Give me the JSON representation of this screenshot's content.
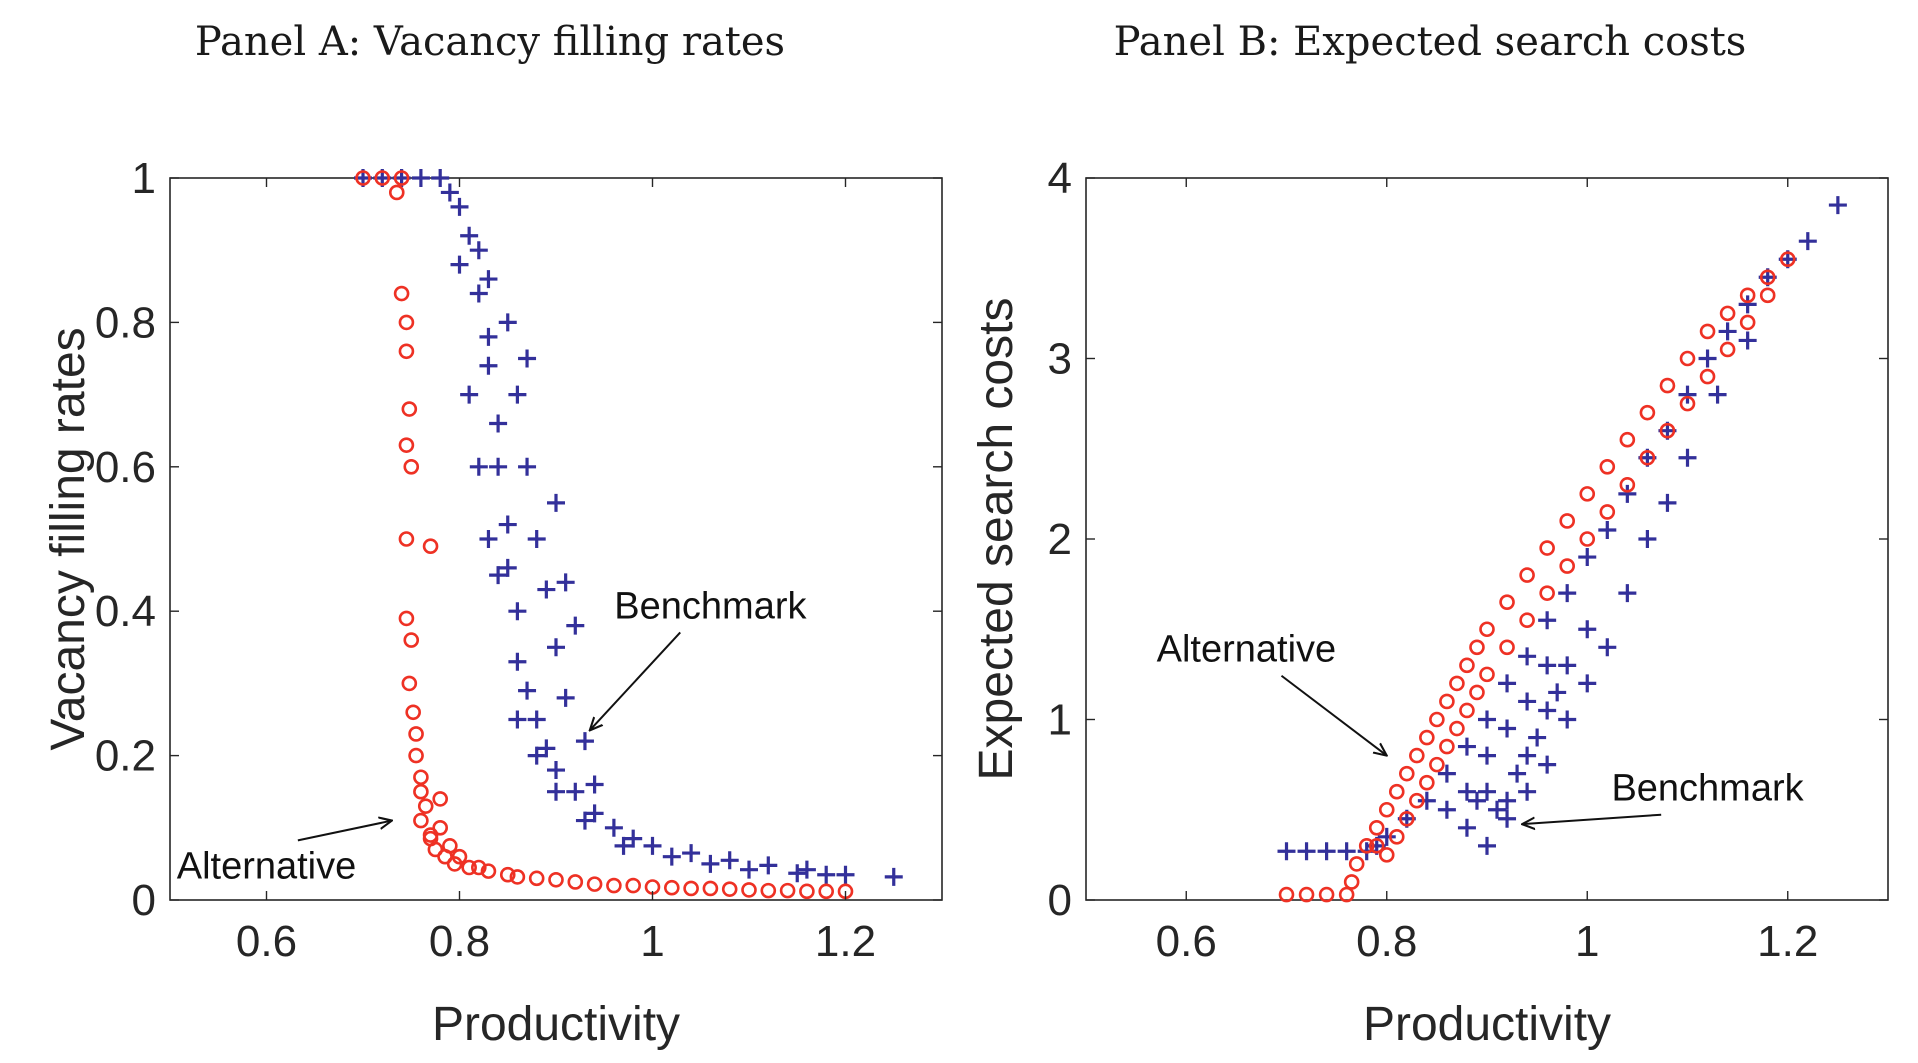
{
  "chart_data": [
    {
      "id": "panel-a",
      "type": "scatter",
      "title": "Panel A: Vacancy filling rates",
      "xlabel": "Productivity",
      "ylabel": "Vacancy filling rates",
      "xlim": [
        0.5,
        1.3
      ],
      "ylim": [
        0,
        1
      ],
      "xticks": [
        0.6,
        0.8,
        1,
        1.2
      ],
      "xtick_labels": [
        "0.6",
        "0.8",
        "1",
        "1.2"
      ],
      "yticks": [
        0,
        0.2,
        0.4,
        0.6,
        0.8,
        1
      ],
      "ytick_labels": [
        "0",
        "0.2",
        "0.4",
        "0.6",
        "0.8",
        "1"
      ],
      "grid": false,
      "series": [
        {
          "marker": "plus",
          "color": "#33309a",
          "points": [
            [
              0.7,
              1.0
            ],
            [
              0.72,
              1.0
            ],
            [
              0.74,
              1.0
            ],
            [
              0.76,
              1.0
            ],
            [
              0.78,
              1.0
            ],
            [
              0.79,
              0.98
            ],
            [
              0.8,
              0.96
            ],
            [
              0.81,
              0.92
            ],
            [
              0.82,
              0.9
            ],
            [
              0.82,
              0.84
            ],
            [
              0.83,
              0.78
            ],
            [
              0.83,
              0.74
            ],
            [
              0.84,
              0.66
            ],
            [
              0.84,
              0.6
            ],
            [
              0.85,
              0.52
            ],
            [
              0.85,
              0.46
            ],
            [
              0.86,
              0.4
            ],
            [
              0.86,
              0.33
            ],
            [
              0.87,
              0.29
            ],
            [
              0.88,
              0.25
            ],
            [
              0.89,
              0.21
            ],
            [
              0.9,
              0.18
            ],
            [
              0.92,
              0.15
            ],
            [
              0.94,
              0.12
            ],
            [
              0.96,
              0.1
            ],
            [
              0.98,
              0.085
            ],
            [
              1.0,
              0.075
            ],
            [
              1.04,
              0.065
            ],
            [
              1.08,
              0.055
            ],
            [
              1.12,
              0.048
            ],
            [
              1.16,
              0.042
            ],
            [
              1.2,
              0.035
            ],
            [
              1.25,
              0.032
            ],
            [
              0.82,
              0.6
            ],
            [
              0.83,
              0.5
            ],
            [
              0.84,
              0.45
            ],
            [
              0.81,
              0.7
            ],
            [
              0.8,
              0.88
            ],
            [
              0.83,
              0.86
            ],
            [
              0.85,
              0.8
            ],
            [
              0.87,
              0.6
            ],
            [
              0.88,
              0.5
            ],
            [
              0.89,
              0.43
            ],
            [
              0.9,
              0.35
            ],
            [
              0.91,
              0.28
            ],
            [
              0.93,
              0.22
            ],
            [
              0.86,
              0.7
            ],
            [
              0.87,
              0.75
            ],
            [
              0.9,
              0.55
            ],
            [
              0.91,
              0.44
            ],
            [
              0.92,
              0.38
            ],
            [
              0.94,
              0.16
            ],
            [
              0.86,
              0.25
            ],
            [
              0.88,
              0.2
            ],
            [
              0.9,
              0.15
            ],
            [
              0.93,
              0.11
            ],
            [
              0.97,
              0.075
            ],
            [
              1.02,
              0.06
            ],
            [
              1.06,
              0.05
            ],
            [
              1.1,
              0.042
            ],
            [
              1.15,
              0.037
            ],
            [
              1.18,
              0.035
            ]
          ]
        },
        {
          "marker": "circle",
          "color": "#ee3124",
          "points": [
            [
              0.7,
              1.0
            ],
            [
              0.72,
              1.0
            ],
            [
              0.74,
              1.0
            ],
            [
              0.735,
              0.98
            ],
            [
              0.74,
              0.84
            ],
            [
              0.745,
              0.8
            ],
            [
              0.745,
              0.76
            ],
            [
              0.748,
              0.68
            ],
            [
              0.745,
              0.63
            ],
            [
              0.75,
              0.6
            ],
            [
              0.745,
              0.5
            ],
            [
              0.77,
              0.49
            ],
            [
              0.745,
              0.39
            ],
            [
              0.75,
              0.36
            ],
            [
              0.748,
              0.3
            ],
            [
              0.752,
              0.26
            ],
            [
              0.755,
              0.23
            ],
            [
              0.755,
              0.2
            ],
            [
              0.76,
              0.17
            ],
            [
              0.76,
              0.15
            ],
            [
              0.765,
              0.13
            ],
            [
              0.78,
              0.14
            ],
            [
              0.78,
              0.1
            ],
            [
              0.79,
              0.075
            ],
            [
              0.77,
              0.085
            ],
            [
              0.8,
              0.06
            ],
            [
              0.82,
              0.045
            ],
            [
              0.85,
              0.035
            ],
            [
              0.88,
              0.03
            ],
            [
              0.92,
              0.025
            ],
            [
              0.96,
              0.02
            ],
            [
              1.0,
              0.018
            ],
            [
              1.04,
              0.016
            ],
            [
              1.08,
              0.015
            ],
            [
              1.12,
              0.013
            ],
            [
              1.16,
              0.012
            ],
            [
              1.2,
              0.012
            ],
            [
              0.76,
              0.11
            ],
            [
              0.77,
              0.09
            ],
            [
              0.775,
              0.07
            ],
            [
              0.785,
              0.06
            ],
            [
              0.795,
              0.05
            ],
            [
              0.81,
              0.045
            ],
            [
              0.83,
              0.04
            ],
            [
              0.86,
              0.032
            ],
            [
              0.9,
              0.028
            ],
            [
              0.94,
              0.022
            ],
            [
              0.98,
              0.02
            ],
            [
              1.02,
              0.017
            ],
            [
              1.06,
              0.016
            ],
            [
              1.1,
              0.014
            ],
            [
              1.14,
              0.013
            ],
            [
              1.18,
              0.012
            ]
          ]
        }
      ],
      "annotations": [
        {
          "text": "Benchmark",
          "anchor": [
            0.935,
            0.235
          ],
          "label_at": [
            1.06,
            0.39
          ]
        },
        {
          "text": "Alternative",
          "anchor": [
            0.73,
            0.11
          ],
          "label_at": [
            0.6,
            0.03
          ]
        }
      ]
    },
    {
      "id": "panel-b",
      "type": "scatter",
      "title": "Panel B: Expected search costs",
      "xlabel": "Productivity",
      "ylabel": "Expected search costs",
      "xlim": [
        0.5,
        1.3
      ],
      "ylim": [
        0,
        4
      ],
      "xticks": [
        0.6,
        0.8,
        1,
        1.2
      ],
      "xtick_labels": [
        "0.6",
        "0.8",
        "1",
        "1.2"
      ],
      "yticks": [
        0,
        1,
        2,
        3,
        4
      ],
      "ytick_labels": [
        "0",
        "1",
        "2",
        "3",
        "4"
      ],
      "grid": false,
      "series": [
        {
          "marker": "plus",
          "color": "#33309a",
          "points": [
            [
              0.7,
              0.27
            ],
            [
              0.72,
              0.27
            ],
            [
              0.74,
              0.27
            ],
            [
              0.76,
              0.27
            ],
            [
              0.78,
              0.27
            ],
            [
              0.79,
              0.3
            ],
            [
              0.8,
              0.35
            ],
            [
              0.82,
              0.45
            ],
            [
              0.84,
              0.55
            ],
            [
              0.86,
              0.7
            ],
            [
              0.88,
              0.85
            ],
            [
              0.9,
              1.0
            ],
            [
              0.92,
              1.2
            ],
            [
              0.94,
              1.35
            ],
            [
              0.96,
              1.55
            ],
            [
              0.98,
              1.7
            ],
            [
              1.0,
              1.9
            ],
            [
              1.02,
              2.05
            ],
            [
              1.04,
              2.25
            ],
            [
              1.06,
              2.45
            ],
            [
              1.08,
              2.6
            ],
            [
              1.1,
              2.8
            ],
            [
              1.12,
              3.0
            ],
            [
              1.14,
              3.15
            ],
            [
              1.16,
              3.3
            ],
            [
              1.18,
              3.45
            ],
            [
              1.2,
              3.55
            ],
            [
              1.22,
              3.65
            ],
            [
              1.25,
              3.85
            ],
            [
              0.88,
              0.4
            ],
            [
              0.89,
              0.55
            ],
            [
              0.9,
              0.6
            ],
            [
              0.91,
              0.5
            ],
            [
              0.92,
              0.55
            ],
            [
              0.93,
              0.7
            ],
            [
              0.94,
              0.8
            ],
            [
              0.95,
              0.9
            ],
            [
              0.96,
              1.05
            ],
            [
              0.97,
              1.15
            ],
            [
              0.98,
              1.3
            ],
            [
              1.0,
              1.5
            ],
            [
              0.9,
              0.3
            ],
            [
              0.92,
              0.45
            ],
            [
              0.94,
              0.6
            ],
            [
              0.96,
              0.75
            ],
            [
              0.98,
              1.0
            ],
            [
              1.0,
              1.2
            ],
            [
              1.02,
              1.4
            ],
            [
              0.86,
              0.5
            ],
            [
              0.88,
              0.6
            ],
            [
              0.9,
              0.8
            ],
            [
              0.92,
              0.95
            ],
            [
              0.94,
              1.1
            ],
            [
              0.96,
              1.3
            ],
            [
              1.04,
              1.7
            ],
            [
              1.06,
              2.0
            ],
            [
              1.08,
              2.2
            ],
            [
              1.1,
              2.45
            ],
            [
              1.13,
              2.8
            ],
            [
              1.16,
              3.1
            ]
          ]
        },
        {
          "marker": "circle",
          "color": "#ee3124",
          "points": [
            [
              0.7,
              0.03
            ],
            [
              0.72,
              0.03
            ],
            [
              0.74,
              0.03
            ],
            [
              0.76,
              0.03
            ],
            [
              0.765,
              0.1
            ],
            [
              0.77,
              0.2
            ],
            [
              0.78,
              0.3
            ],
            [
              0.79,
              0.4
            ],
            [
              0.8,
              0.5
            ],
            [
              0.81,
              0.6
            ],
            [
              0.82,
              0.7
            ],
            [
              0.83,
              0.8
            ],
            [
              0.84,
              0.9
            ],
            [
              0.85,
              1.0
            ],
            [
              0.86,
              1.1
            ],
            [
              0.87,
              1.2
            ],
            [
              0.88,
              1.3
            ],
            [
              0.89,
              1.4
            ],
            [
              0.9,
              1.5
            ],
            [
              0.92,
              1.65
            ],
            [
              0.94,
              1.8
            ],
            [
              0.96,
              1.95
            ],
            [
              0.98,
              2.1
            ],
            [
              1.0,
              2.25
            ],
            [
              1.02,
              2.4
            ],
            [
              1.04,
              2.55
            ],
            [
              1.06,
              2.7
            ],
            [
              1.08,
              2.85
            ],
            [
              1.1,
              3.0
            ],
            [
              1.12,
              3.15
            ],
            [
              1.14,
              3.25
            ],
            [
              1.16,
              3.35
            ],
            [
              1.18,
              3.45
            ],
            [
              1.2,
              3.55
            ],
            [
              0.79,
              0.3
            ],
            [
              0.8,
              0.25
            ],
            [
              0.81,
              0.35
            ],
            [
              0.82,
              0.45
            ],
            [
              0.83,
              0.55
            ],
            [
              0.84,
              0.65
            ],
            [
              0.85,
              0.75
            ],
            [
              0.86,
              0.85
            ],
            [
              0.87,
              0.95
            ],
            [
              0.88,
              1.05
            ],
            [
              0.89,
              1.15
            ],
            [
              0.9,
              1.25
            ],
            [
              0.92,
              1.4
            ],
            [
              0.94,
              1.55
            ],
            [
              0.96,
              1.7
            ],
            [
              0.98,
              1.85
            ],
            [
              1.0,
              2.0
            ],
            [
              1.02,
              2.15
            ],
            [
              1.04,
              2.3
            ],
            [
              1.06,
              2.45
            ],
            [
              1.08,
              2.6
            ],
            [
              1.1,
              2.75
            ],
            [
              1.12,
              2.9
            ],
            [
              1.14,
              3.05
            ],
            [
              1.16,
              3.2
            ],
            [
              1.18,
              3.35
            ]
          ]
        }
      ],
      "annotations": [
        {
          "text": "Alternative",
          "anchor": [
            0.8,
            0.8
          ],
          "label_at": [
            0.66,
            1.32
          ]
        },
        {
          "text": "Benchmark",
          "anchor": [
            0.935,
            0.42
          ],
          "label_at": [
            1.12,
            0.55
          ]
        }
      ]
    }
  ]
}
